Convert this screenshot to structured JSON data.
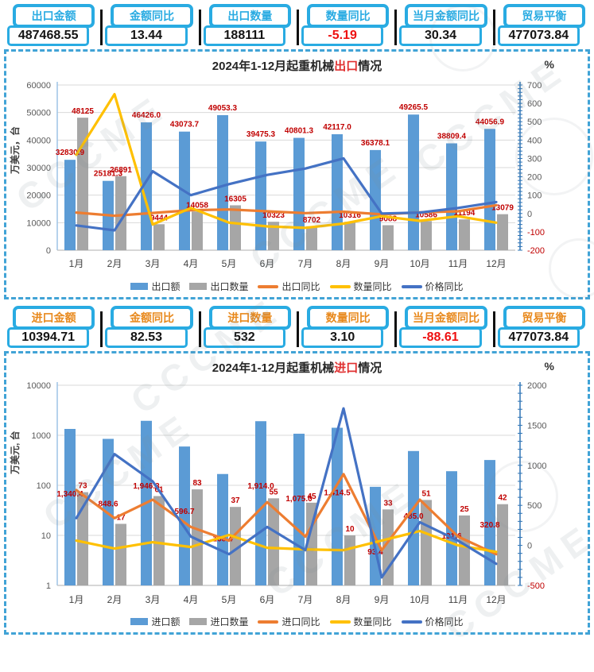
{
  "watermark": {
    "text": "CCCME"
  },
  "kpi_rows": [
    {
      "name": "export-kpis",
      "accent": "#29ABE2",
      "label_color": "#29ABE2",
      "items": [
        {
          "label": "出口金额",
          "value": "487468.55",
          "negative": false
        },
        {
          "label": "金额同比",
          "value": "13.44",
          "negative": false
        },
        {
          "label": "出口数量",
          "value": "188111",
          "negative": false
        },
        {
          "label": "数量同比",
          "value": "-5.19",
          "negative": true
        },
        {
          "label": "当月金额同比",
          "value": "30.34",
          "negative": false
        },
        {
          "label": "贸易平衡",
          "value": "477073.84",
          "negative": false
        }
      ]
    },
    {
      "name": "import-kpis",
      "accent": "#29ABE2",
      "label_color": "#E8891D",
      "items": [
        {
          "label": "进口金额",
          "value": "10394.71",
          "negative": false
        },
        {
          "label": "金额同比",
          "value": "82.53",
          "negative": false
        },
        {
          "label": "进口数量",
          "value": "532",
          "negative": false
        },
        {
          "label": "数量同比",
          "value": "3.10",
          "negative": false
        },
        {
          "label": "当月金额同比",
          "value": "-88.61",
          "negative": true
        },
        {
          "label": "贸易平衡",
          "value": "477073.84",
          "negative": false
        }
      ]
    }
  ],
  "chart_data": [
    {
      "type": "bar+line combo",
      "title": {
        "prefix": "2024年1-12月起重机械",
        "highlight": "出口",
        "suffix": "情况"
      },
      "left_axis": {
        "title": "万美元，台",
        "scale": "linear",
        "min": 0,
        "max": 60000,
        "step": 10000
      },
      "right_axis": {
        "title": "%",
        "min": -200,
        "max": 700,
        "step": 100
      },
      "grid": true,
      "legend_position": "bottom",
      "label_color": "#C00000",
      "categories": [
        "1月",
        "2月",
        "3月",
        "4月",
        "5月",
        "6月",
        "7月",
        "8月",
        "9月",
        "10月",
        "11月",
        "12月"
      ],
      "series": [
        {
          "name": "出口额",
          "type": "bar",
          "axis": "left",
          "color": "#5B9BD5",
          "values": [
            32830.9,
            25181.3,
            46426.0,
            43073.7,
            49053.3,
            39475.3,
            40801.3,
            42117.0,
            36378.1,
            49265.5,
            38809.4,
            44056.9
          ],
          "labels": [
            "32830.9",
            "25181.3",
            "46426.0",
            "43073.7",
            "49053.3",
            "39475.3",
            "40801.3",
            "42117.0",
            "36378.1",
            "49265.5",
            "38809.4",
            "44056.9"
          ]
        },
        {
          "name": "出口数量",
          "type": "bar",
          "axis": "left",
          "color": "#A6A6A6",
          "values": [
            48125,
            26891,
            9444,
            14058,
            16305,
            10323,
            8702,
            10316,
            9088,
            10586,
            11194,
            13079
          ],
          "labels": [
            "48125",
            "26891",
            "9444",
            "14058",
            "16305",
            "10323",
            "8702",
            "10316",
            "9088",
            "10586",
            "11194",
            "13079"
          ]
        },
        {
          "name": "出口同比",
          "type": "line",
          "axis": "right",
          "color": "#ED7D31",
          "estimated": true,
          "values": [
            5,
            -12,
            3,
            18,
            22,
            12,
            2,
            10,
            -5,
            6,
            12,
            45
          ]
        },
        {
          "name": "数量同比",
          "type": "line",
          "axis": "right",
          "color": "#FFC000",
          "estimated": true,
          "values": [
            320,
            650,
            -60,
            30,
            -50,
            -70,
            -78,
            -55,
            -15,
            -40,
            -15,
            -50
          ]
        },
        {
          "name": "价格同比",
          "type": "line",
          "axis": "right",
          "color": "#4472C4",
          "estimated": true,
          "values": [
            -65,
            -92,
            230,
            100,
            160,
            210,
            245,
            300,
            0,
            5,
            30,
            62
          ]
        }
      ]
    },
    {
      "type": "bar+line combo",
      "title": {
        "prefix": "2024年1-12月起重机械",
        "highlight": "进口",
        "suffix": "情况"
      },
      "left_axis": {
        "title": "万美元, 台",
        "scale": "log",
        "min": 1,
        "max": 10000
      },
      "right_axis": {
        "title": "%",
        "min": -500,
        "max": 2000,
        "step": 500
      },
      "grid": true,
      "legend_position": "bottom",
      "label_color": "#C00000",
      "categories": [
        "1月",
        "2月",
        "3月",
        "4月",
        "5月",
        "6月",
        "7月",
        "8月",
        "9月",
        "10月",
        "11月",
        "12月"
      ],
      "series": [
        {
          "name": "进口额",
          "type": "bar",
          "axis": "left",
          "color": "#5B9BD5",
          "values": [
            1340.4,
            848.6,
            1946.3,
            596.7,
            168.4,
            1914.0,
            1075.0,
            1414.5,
            93.4,
            485.0,
            191.6,
            320.8
          ],
          "labels": [
            "1,340.4",
            "848.6",
            "1,946.3",
            "596.7",
            "168.4",
            "1,914.0",
            "1,075.0",
            "1,414.5",
            "93.4",
            "485.0",
            "191.6",
            "320.8"
          ]
        },
        {
          "name": "进口数量",
          "type": "bar",
          "axis": "left",
          "color": "#A6A6A6",
          "values": [
            73,
            17,
            61,
            83,
            37,
            55,
            45,
            10,
            33,
            51,
            25,
            42
          ],
          "labels": [
            "73",
            "17",
            "61",
            "83",
            "37",
            "55",
            "45",
            "10",
            "33",
            "51",
            "25",
            "42"
          ]
        },
        {
          "name": "进口同比",
          "type": "line",
          "axis": "right",
          "color": "#ED7D31",
          "estimated": true,
          "values": [
            690,
            340,
            570,
            230,
            60,
            540,
            110,
            890,
            -60,
            570,
            110,
            -110
          ]
        },
        {
          "name": "数量同比",
          "type": "line",
          "axis": "right",
          "color": "#FFC000",
          "estimated": true,
          "values": [
            60,
            -40,
            40,
            -20,
            130,
            -30,
            -50,
            -60,
            60,
            180,
            0,
            -80
          ]
        },
        {
          "name": "价格同比",
          "type": "line",
          "axis": "right",
          "color": "#4472C4",
          "estimated": true,
          "values": [
            340,
            1140,
            800,
            110,
            -110,
            230,
            -60,
            1710,
            -400,
            290,
            60,
            -230
          ]
        }
      ]
    }
  ]
}
